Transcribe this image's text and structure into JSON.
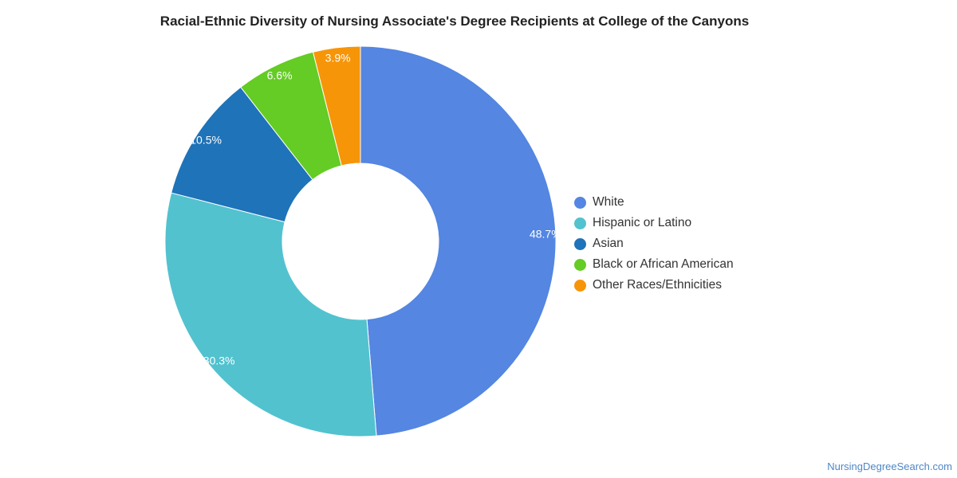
{
  "title": "Racial-Ethnic Diversity of Nursing Associate's Degree Recipients at College of the Canyons",
  "source": "NursingDegreeSearch.com",
  "chart_data": {
    "type": "pie",
    "variant": "donut",
    "title": "Racial-Ethnic Diversity of Nursing Associate's Degree Recipients at College of the Canyons",
    "legend_position": "right",
    "unit": "%",
    "slices": [
      {
        "name": "White",
        "value": 48.7,
        "label": "48.7%",
        "color": "#5486e2"
      },
      {
        "name": "Hispanic or Latino",
        "value": 30.3,
        "label": "30.3%",
        "color": "#52c2cf"
      },
      {
        "name": "Asian",
        "value": 10.5,
        "label": "10.5%",
        "color": "#1f73b8"
      },
      {
        "name": "Black or African American",
        "value": 6.6,
        "label": "6.6%",
        "color": "#64cc24"
      },
      {
        "name": "Other Races/Ethnicities",
        "value": 3.9,
        "label": "3.9%",
        "color": "#f79508"
      }
    ]
  }
}
